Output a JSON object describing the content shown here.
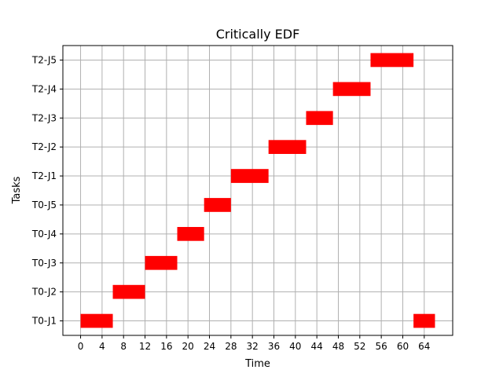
{
  "chart_data": {
    "type": "gantt",
    "title": "Critically EDF",
    "xlabel": "Time",
    "ylabel": "Tasks",
    "xlim": [
      -3.3,
      69.3
    ],
    "xticks": [
      0,
      4,
      8,
      12,
      16,
      20,
      24,
      28,
      32,
      36,
      40,
      44,
      48,
      52,
      56,
      60,
      64
    ],
    "categories": [
      "T0-J1",
      "T0-J2",
      "T0-J3",
      "T0-J4",
      "T0-J5",
      "T2-J1",
      "T2-J2",
      "T2-J3",
      "T2-J4",
      "T2-J5"
    ],
    "grid": true,
    "bar_color": "#ff0000",
    "bars": [
      {
        "task": "T0-J1",
        "start": 0,
        "end": 6
      },
      {
        "task": "T0-J1",
        "start": 62,
        "end": 66
      },
      {
        "task": "T0-J2",
        "start": 6,
        "end": 12
      },
      {
        "task": "T0-J3",
        "start": 12,
        "end": 18
      },
      {
        "task": "T0-J4",
        "start": 18,
        "end": 23
      },
      {
        "task": "T0-J5",
        "start": 23,
        "end": 28
      },
      {
        "task": "T2-J1",
        "start": 28,
        "end": 35
      },
      {
        "task": "T2-J2",
        "start": 35,
        "end": 42
      },
      {
        "task": "T2-J3",
        "start": 42,
        "end": 47
      },
      {
        "task": "T2-J4",
        "start": 47,
        "end": 54
      },
      {
        "task": "T2-J5",
        "start": 54,
        "end": 62
      }
    ]
  }
}
